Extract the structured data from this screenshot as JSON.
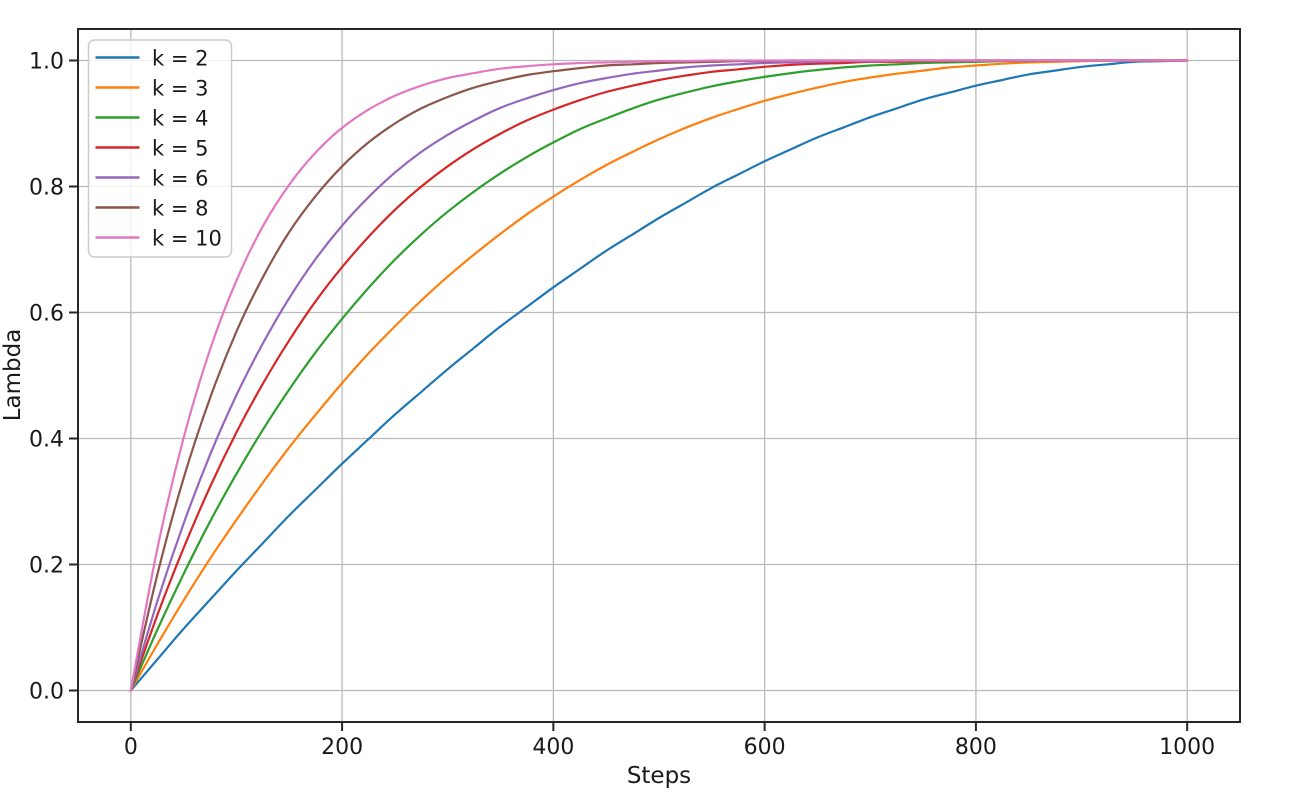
{
  "chart_data": {
    "type": "line",
    "title": "",
    "xlabel": "Steps",
    "ylabel": "Lambda",
    "xlim": [
      -50,
      1050
    ],
    "ylim": [
      -0.05,
      1.05
    ],
    "grid": true,
    "legend_position": "upper left",
    "xticks": {
      "values": [
        0,
        200,
        400,
        600,
        800,
        1000
      ],
      "labels": [
        "0",
        "200",
        "400",
        "600",
        "800",
        "1000"
      ]
    },
    "yticks": {
      "values": [
        0.0,
        0.2,
        0.4,
        0.6,
        0.8,
        1.0
      ],
      "labels": [
        "0.0",
        "0.2",
        "0.4",
        "0.6",
        "0.8",
        "1.0"
      ]
    },
    "x": [
      0,
      25,
      50,
      75,
      100,
      125,
      150,
      175,
      200,
      225,
      250,
      275,
      300,
      325,
      350,
      375,
      400,
      425,
      450,
      475,
      500,
      525,
      550,
      575,
      600,
      625,
      650,
      675,
      700,
      725,
      750,
      775,
      800,
      825,
      850,
      875,
      900,
      925,
      950,
      975,
      1000
    ],
    "series": [
      {
        "name": "k = 2",
        "color": "#1f77b4",
        "values": [
          0,
          0.049,
          0.098,
          0.144,
          0.19,
          0.234,
          0.278,
          0.319,
          0.36,
          0.399,
          0.438,
          0.474,
          0.51,
          0.544,
          0.578,
          0.609,
          0.64,
          0.669,
          0.698,
          0.724,
          0.75,
          0.774,
          0.798,
          0.819,
          0.84,
          0.859,
          0.878,
          0.894,
          0.91,
          0.924,
          0.938,
          0.949,
          0.96,
          0.969,
          0.978,
          0.984,
          0.99,
          0.994,
          0.998,
          0.999,
          1.0
        ]
      },
      {
        "name": "k = 3",
        "color": "#ff7f0e",
        "values": [
          0,
          0.073,
          0.143,
          0.209,
          0.271,
          0.33,
          0.386,
          0.438,
          0.488,
          0.535,
          0.578,
          0.619,
          0.657,
          0.692,
          0.725,
          0.756,
          0.784,
          0.81,
          0.834,
          0.855,
          0.875,
          0.893,
          0.909,
          0.923,
          0.936,
          0.947,
          0.957,
          0.966,
          0.973,
          0.979,
          0.984,
          0.989,
          0.992,
          0.995,
          0.997,
          0.998,
          0.999,
          1.0,
          1.0,
          1.0,
          1.0
        ]
      },
      {
        "name": "k = 4",
        "color": "#2ca02c",
        "values": [
          0,
          0.096,
          0.185,
          0.268,
          0.344,
          0.414,
          0.478,
          0.537,
          0.59,
          0.639,
          0.684,
          0.724,
          0.76,
          0.792,
          0.821,
          0.847,
          0.87,
          0.891,
          0.908,
          0.924,
          0.938,
          0.949,
          0.959,
          0.967,
          0.974,
          0.98,
          0.985,
          0.989,
          0.992,
          0.994,
          0.996,
          0.997,
          0.998,
          0.999,
          0.999,
          1.0,
          1.0,
          1.0,
          1.0,
          1.0,
          1.0
        ]
      },
      {
        "name": "k = 5",
        "color": "#d62728",
        "values": [
          0,
          0.119,
          0.226,
          0.323,
          0.41,
          0.487,
          0.556,
          0.618,
          0.672,
          0.72,
          0.763,
          0.8,
          0.832,
          0.86,
          0.884,
          0.905,
          0.922,
          0.937,
          0.95,
          0.96,
          0.969,
          0.976,
          0.982,
          0.986,
          0.99,
          0.993,
          0.995,
          0.996,
          0.998,
          0.998,
          0.999,
          0.999,
          1.0,
          1.0,
          1.0,
          1.0,
          1.0,
          1.0,
          1.0,
          1.0,
          1.0
        ]
      },
      {
        "name": "k = 6",
        "color": "#9467bd",
        "values": [
          0,
          0.141,
          0.265,
          0.374,
          0.469,
          0.551,
          0.623,
          0.685,
          0.738,
          0.783,
          0.822,
          0.855,
          0.882,
          0.905,
          0.925,
          0.94,
          0.953,
          0.964,
          0.972,
          0.979,
          0.984,
          0.989,
          0.992,
          0.994,
          0.996,
          0.997,
          0.998,
          0.999,
          0.999,
          1.0,
          1.0,
          1.0,
          1.0,
          1.0,
          1.0,
          1.0,
          1.0,
          1.0,
          1.0,
          1.0,
          1.0
        ]
      },
      {
        "name": "k = 8",
        "color": "#8c564b",
        "values": [
          0,
          0.183,
          0.337,
          0.464,
          0.57,
          0.656,
          0.728,
          0.785,
          0.832,
          0.87,
          0.9,
          0.924,
          0.942,
          0.957,
          0.968,
          0.977,
          0.983,
          0.988,
          0.992,
          0.994,
          0.996,
          0.997,
          0.998,
          0.999,
          0.999,
          1.0,
          1.0,
          1.0,
          1.0,
          1.0,
          1.0,
          1.0,
          1.0,
          1.0,
          1.0,
          1.0,
          1.0,
          1.0,
          1.0,
          1.0,
          1.0
        ]
      },
      {
        "name": "k = 10",
        "color": "#e377c2",
        "values": [
          0,
          0.224,
          0.401,
          0.541,
          0.651,
          0.737,
          0.803,
          0.854,
          0.893,
          0.922,
          0.944,
          0.96,
          0.972,
          0.98,
          0.987,
          0.991,
          0.994,
          0.996,
          0.997,
          0.998,
          0.999,
          0.999,
          1.0,
          1.0,
          1.0,
          1.0,
          1.0,
          1.0,
          1.0,
          1.0,
          1.0,
          1.0,
          1.0,
          1.0,
          1.0,
          1.0,
          1.0,
          1.0,
          1.0,
          1.0,
          1.0
        ]
      }
    ],
    "style": {
      "background": "#ffffff",
      "grid_color": "#bababa",
      "spine_color": "#262626",
      "tick_color": "#262626",
      "text_color": "#1a1a1a",
      "legend_border_color": "#cccccc",
      "legend_background": "#ffffff",
      "line_width": 2.2
    }
  }
}
